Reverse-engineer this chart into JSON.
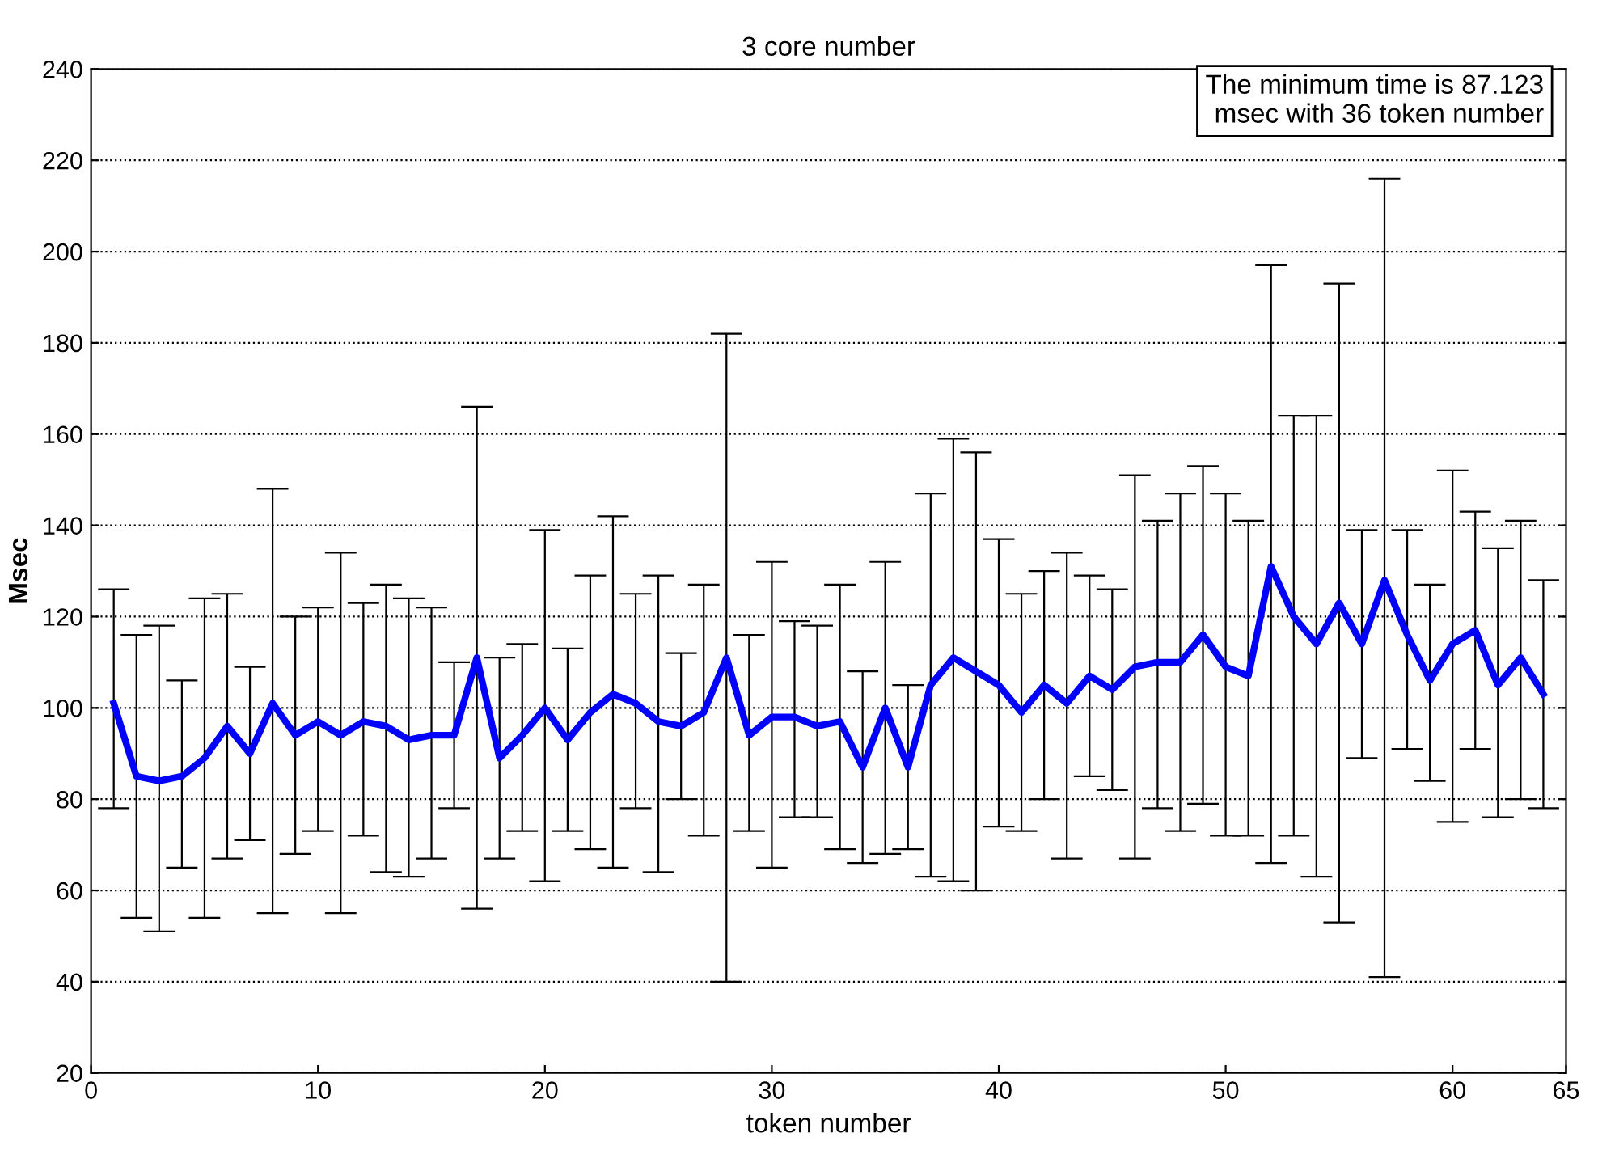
{
  "chart_data": {
    "type": "line",
    "title": "3 core number",
    "xlabel": "token number",
    "ylabel": "Msec",
    "annotations": [
      "The minimum time is 87.123\nmsec with 36 token number"
    ],
    "x": [
      1,
      2,
      3,
      4,
      5,
      6,
      7,
      8,
      9,
      10,
      11,
      12,
      13,
      14,
      15,
      16,
      17,
      18,
      19,
      20,
      21,
      22,
      23,
      24,
      25,
      26,
      27,
      28,
      29,
      30,
      31,
      32,
      33,
      34,
      35,
      36,
      37,
      38,
      39,
      40,
      41,
      42,
      43,
      44,
      45,
      46,
      47,
      48,
      49,
      50,
      51,
      52,
      53,
      54,
      55,
      56,
      57,
      58,
      59,
      60,
      61,
      62,
      63,
      64
    ],
    "series": [
      {
        "color": "#0000ff",
        "values": [
          101,
          85,
          84,
          85,
          89,
          96,
          90,
          101,
          94,
          97,
          94,
          97,
          96,
          93,
          94,
          94,
          111,
          89,
          94,
          100,
          93,
          99,
          103,
          101,
          97,
          96,
          99,
          111,
          94,
          98,
          98,
          96,
          97,
          87,
          100,
          87,
          105,
          111,
          108,
          105,
          99,
          105,
          101,
          107,
          104,
          109,
          110,
          110,
          116,
          109,
          107,
          131,
          120,
          114,
          123,
          114,
          128,
          116,
          106,
          114,
          117,
          105,
          111,
          103
        ],
        "errors": [
          [
            78,
            126
          ],
          [
            54,
            116
          ],
          [
            51,
            118
          ],
          [
            65,
            106
          ],
          [
            54,
            124
          ],
          [
            67,
            125
          ],
          [
            71,
            109
          ],
          [
            55,
            148
          ],
          [
            68,
            120
          ],
          [
            73,
            122
          ],
          [
            55,
            134
          ],
          [
            72,
            123
          ],
          [
            64,
            127
          ],
          [
            63,
            124
          ],
          [
            67,
            122
          ],
          [
            78,
            110
          ],
          [
            56,
            166
          ],
          [
            67,
            111
          ],
          [
            73,
            114
          ],
          [
            62,
            139
          ],
          [
            73,
            113
          ],
          [
            69,
            129
          ],
          [
            65,
            142
          ],
          [
            78,
            125
          ],
          [
            64,
            129
          ],
          [
            80,
            112
          ],
          [
            72,
            127
          ],
          [
            40,
            182
          ],
          [
            73,
            116
          ],
          [
            65,
            132
          ],
          [
            76,
            119
          ],
          [
            76,
            118
          ],
          [
            69,
            127
          ],
          [
            66,
            108
          ],
          [
            68,
            132
          ],
          [
            69,
            105
          ],
          [
            63,
            147
          ],
          [
            62,
            159
          ],
          [
            60,
            156
          ],
          [
            74,
            137
          ],
          [
            73,
            125
          ],
          [
            80,
            130
          ],
          [
            67,
            134
          ],
          [
            85,
            129
          ],
          [
            82,
            126
          ],
          [
            67,
            151
          ],
          [
            78,
            141
          ],
          [
            73,
            147
          ],
          [
            79,
            153
          ],
          [
            72,
            147
          ],
          [
            72,
            141
          ],
          [
            66,
            197
          ],
          [
            72,
            164
          ],
          [
            63,
            164
          ],
          [
            53,
            193
          ],
          [
            89,
            139
          ],
          [
            41,
            216
          ],
          [
            91,
            139
          ],
          [
            84,
            127
          ],
          [
            75,
            152
          ],
          [
            91,
            143
          ],
          [
            76,
            135
          ],
          [
            80,
            141
          ],
          [
            78,
            128
          ]
        ]
      }
    ],
    "xlim": [
      0,
      65
    ],
    "xticks": [
      0,
      10,
      20,
      30,
      40,
      50,
      60,
      65
    ],
    "ylim": [
      20,
      240
    ],
    "yticks": [
      20,
      40,
      60,
      80,
      100,
      120,
      140,
      160,
      180,
      200,
      220,
      240
    ],
    "grid": "y",
    "marker": "none",
    "line_style": "solid"
  }
}
